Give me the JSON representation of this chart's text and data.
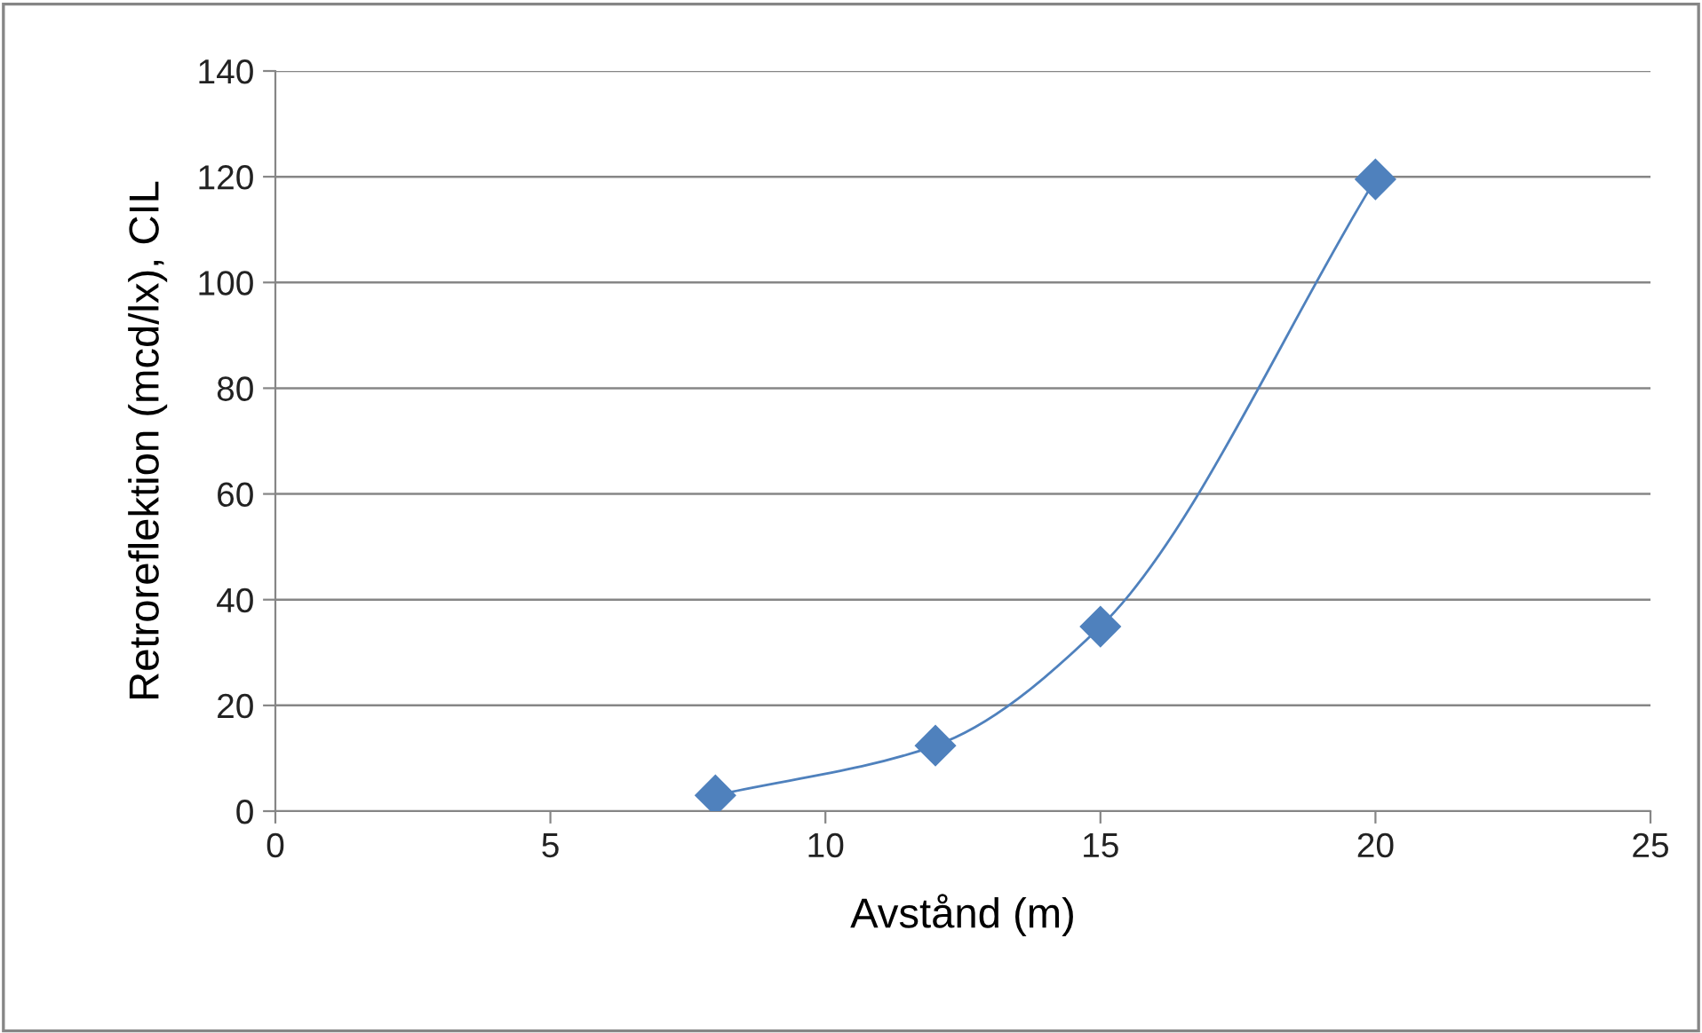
{
  "chart_data": {
    "type": "line",
    "xlabel": "Avstånd (m)",
    "ylabel": "Retroreflektion (mcd/lx), CIL",
    "x": [
      8,
      12,
      15,
      20
    ],
    "series": [
      {
        "color": "#4f81bd",
        "values": [
          3.0,
          12.4,
          34.9,
          119.5
        ]
      }
    ],
    "xlim": [
      0,
      25
    ],
    "xticks": [
      0,
      5,
      10,
      15,
      20,
      25
    ],
    "ylim": [
      0,
      140
    ],
    "yticks": [
      0,
      20,
      40,
      60,
      80,
      100,
      120,
      140
    ],
    "grid": "y",
    "marker": "diamond",
    "line_style": "solid"
  }
}
